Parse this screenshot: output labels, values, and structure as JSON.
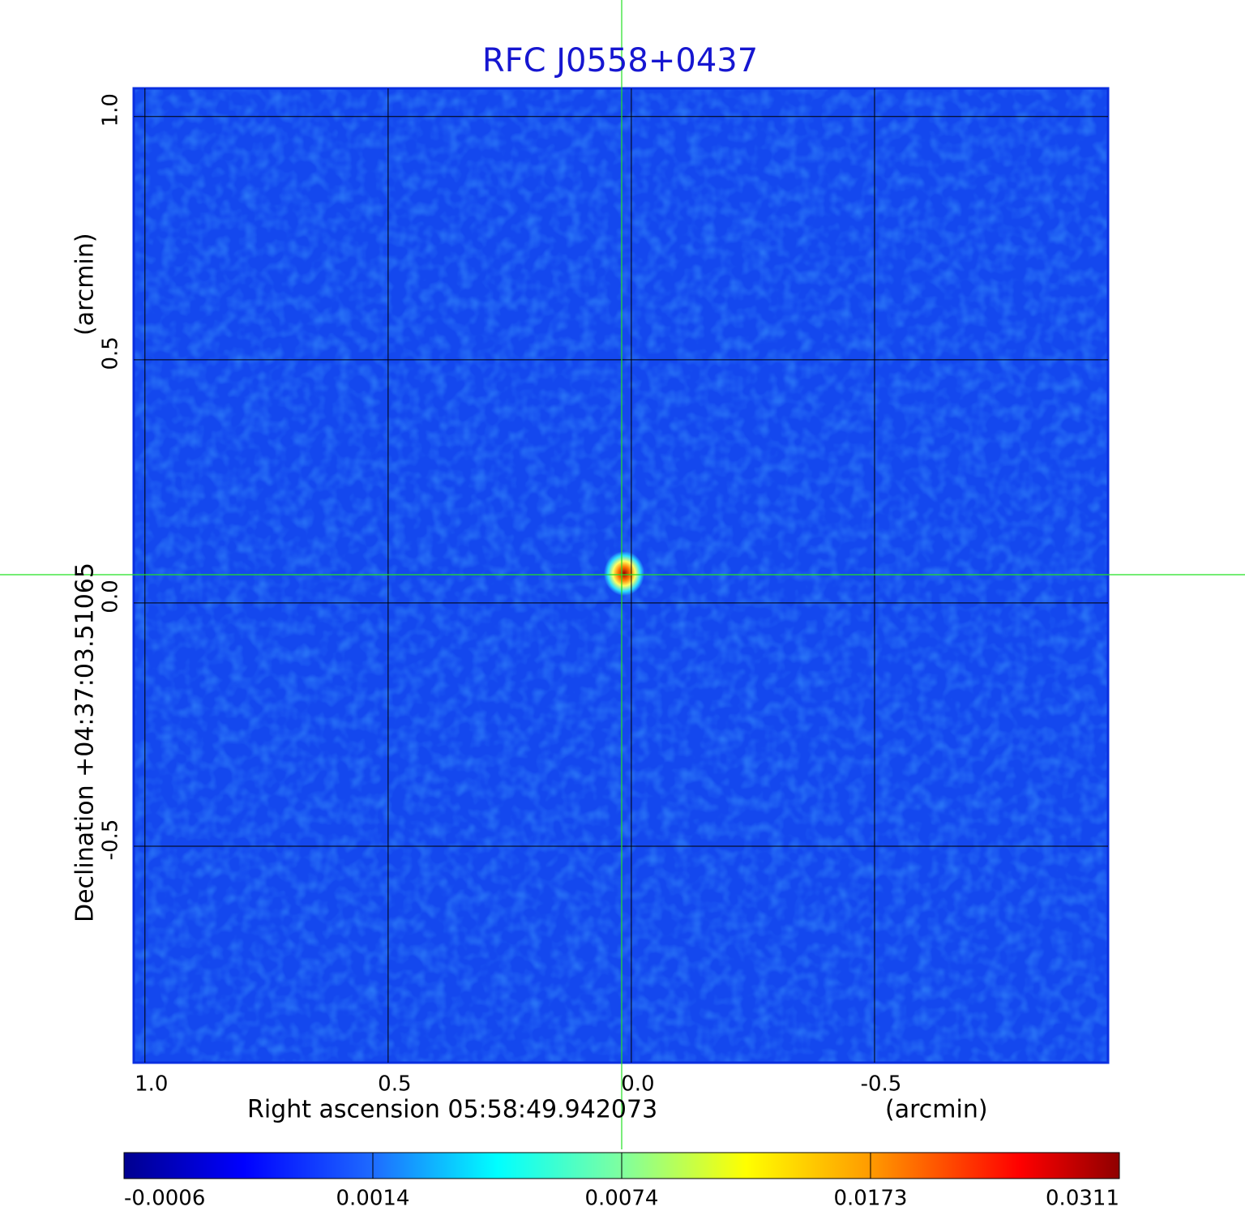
{
  "chart_data": {
    "type": "image",
    "title": "RFC J0558+0437",
    "x_label": "Right ascension  05:58:49.942073",
    "x_unit": "(arcmin)",
    "y_label": "Declination  +04:37:03.51065",
    "y_unit": "(arcmin)",
    "xlim": [
      1.023,
      -0.98
    ],
    "ylim": [
      -0.945,
      1.058
    ],
    "xticks": [
      {
        "value": 1,
        "label": "1.0"
      },
      0.5,
      {
        "value": 0,
        "label": "0.0"
      },
      -0.5
    ],
    "yticks": [
      -0.5,
      {
        "value": 0,
        "label": "0.0"
      },
      0.5,
      {
        "value": 1,
        "label": "1.0"
      }
    ],
    "grid": true,
    "colorbar_ticks": [
      -0.0006,
      0.0014,
      0.0074,
      0.0173,
      0.0311
    ]
  }
}
